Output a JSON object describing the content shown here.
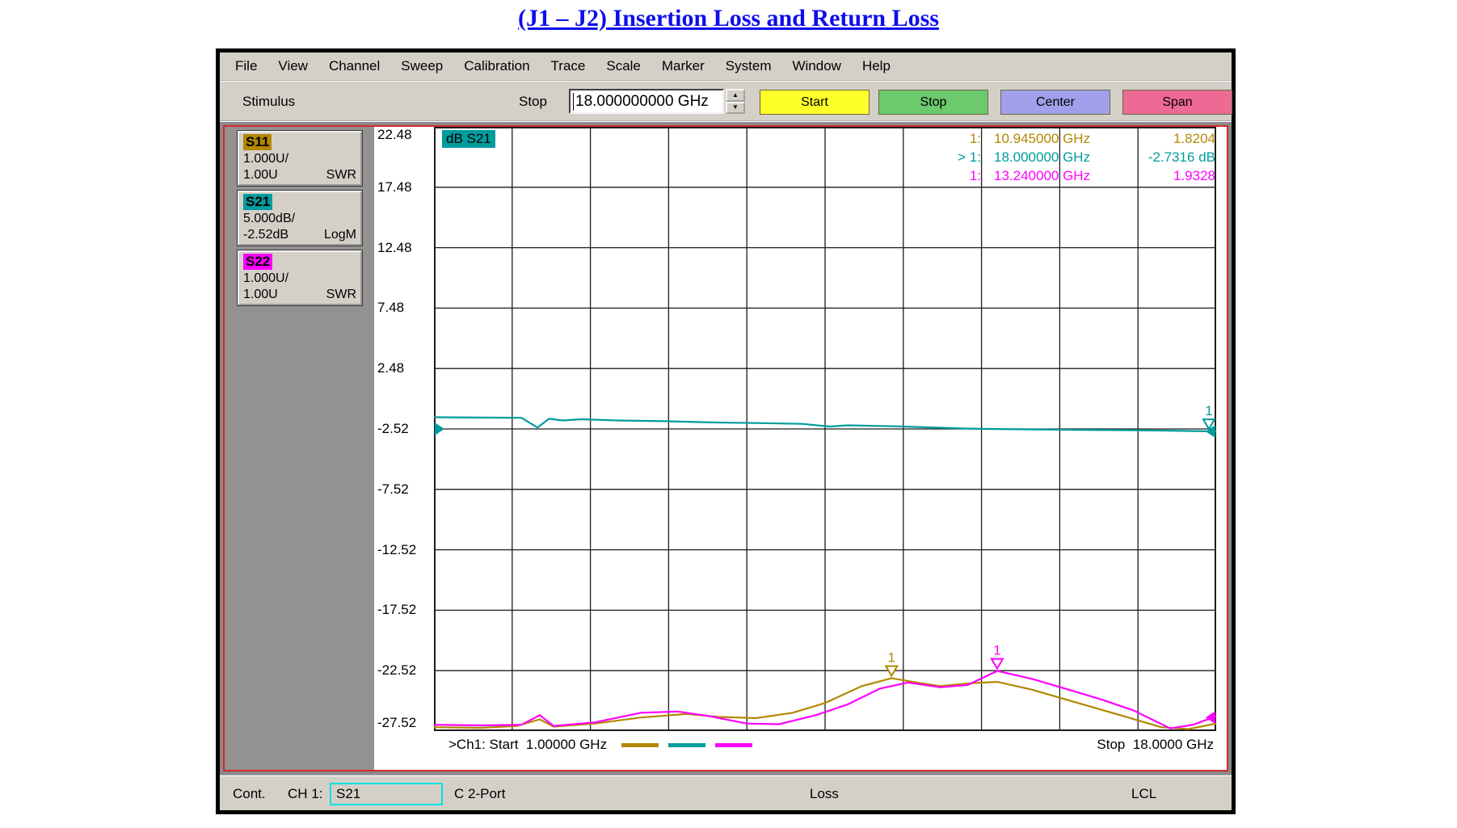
{
  "page_title": "(J1 – J2) Insertion Loss and Return Loss",
  "menu": {
    "items": [
      "File",
      "View",
      "Channel",
      "Sweep",
      "Calibration",
      "Trace",
      "Scale",
      "Marker",
      "System",
      "Window",
      "Help"
    ]
  },
  "toolbar": {
    "stimulus_label": "Stimulus",
    "stop_field_label": "Stop",
    "stop_field_value": "18.000000000 GHz",
    "buttons": [
      {
        "label": "Start",
        "color": "#ffff29"
      },
      {
        "label": "Stop",
        "color": "#6cc96c"
      },
      {
        "label": "Center",
        "color": "#a0a0ec"
      },
      {
        "label": "Span",
        "color": "#ec6a94"
      }
    ]
  },
  "sidebar": {
    "traces": [
      {
        "name": "S11",
        "tag_color": "#b28800",
        "scale": "1.000U/",
        "ref": "1.00U",
        "format": "SWR"
      },
      {
        "name": "S21",
        "tag_color": "#009c9e",
        "scale": "5.000dB/",
        "ref": "-2.52dB",
        "format": "LogM"
      },
      {
        "name": "S22",
        "tag_color": "#ff00ff",
        "scale": "1.000U/",
        "ref": "1.00U",
        "format": "SWR"
      }
    ]
  },
  "chart": {
    "trace_label": "dB S21",
    "readout": [
      {
        "num": "1:",
        "freq": "10.945000 GHz",
        "value": "1.8204",
        "color": "#b28800"
      },
      {
        "num": "> 1:",
        "freq": "18.000000 GHz",
        "value": "-2.7316 dB",
        "color": "#009c9e"
      },
      {
        "num": "1:",
        "freq": "13.240000 GHz",
        "value": "1.9328",
        "color": "#ff00ff"
      }
    ],
    "footer_left": ">Ch1: Start  1.00000 GHz",
    "footer_right": "Stop  18.0000 GHz",
    "legend_colors": [
      "#b28800",
      "#009c9e",
      "#ff00ff"
    ]
  },
  "chart_data": {
    "type": "line",
    "x_unit": "GHz",
    "x_range": [
      1,
      18
    ],
    "ylim": [
      -27.52,
      22.48
    ],
    "y_tick_labels": [
      "22.48",
      "17.48",
      "12.48",
      "7.48",
      "2.48",
      "-2.52",
      "-7.52",
      "-12.52",
      "-17.52",
      "-22.52",
      "-27.52"
    ],
    "grid_divisions": [
      10,
      10
    ],
    "note": "S21 trace in dB (LogM, 5 dB/div, ref -2.52 dB). S11/S22 are SWR traces (1 U/div, ref 1.00 U) given below in axis display units.",
    "series": [
      {
        "name": "S21",
        "color": "#009c9e",
        "points": [
          [
            1,
            -1.55
          ],
          [
            2,
            -1.58
          ],
          [
            2.9,
            -1.6
          ],
          [
            3.25,
            -2.4
          ],
          [
            3.5,
            -1.68
          ],
          [
            3.8,
            -1.82
          ],
          [
            4.2,
            -1.72
          ],
          [
            5,
            -1.82
          ],
          [
            6,
            -1.88
          ],
          [
            7,
            -1.98
          ],
          [
            8,
            -2.03
          ],
          [
            9,
            -2.1
          ],
          [
            9.6,
            -2.32
          ],
          [
            10,
            -2.22
          ],
          [
            11,
            -2.3
          ],
          [
            12,
            -2.42
          ],
          [
            12.5,
            -2.48
          ],
          [
            13,
            -2.52
          ],
          [
            14,
            -2.56
          ],
          [
            15,
            -2.6
          ],
          [
            16,
            -2.62
          ],
          [
            17,
            -2.66
          ],
          [
            18,
            -2.73
          ]
        ]
      },
      {
        "name": "S11",
        "color": "#b28800",
        "points": [
          [
            1,
            -27.2
          ],
          [
            2,
            -27.25
          ],
          [
            2.8,
            -27.1
          ],
          [
            3.3,
            -26.55
          ],
          [
            3.6,
            -27.15
          ],
          [
            4.5,
            -26.9
          ],
          [
            5.5,
            -26.4
          ],
          [
            6.5,
            -26.1
          ],
          [
            7.2,
            -26.35
          ],
          [
            8,
            -26.45
          ],
          [
            8.8,
            -26.0
          ],
          [
            9.5,
            -25.2
          ],
          [
            10.3,
            -23.8
          ],
          [
            10.945,
            -23.15
          ],
          [
            11.5,
            -23.5
          ],
          [
            12,
            -23.8
          ],
          [
            12.7,
            -23.55
          ],
          [
            13.24,
            -23.45
          ],
          [
            14,
            -24.1
          ],
          [
            15,
            -25.2
          ],
          [
            16,
            -26.3
          ],
          [
            16.8,
            -27.2
          ],
          [
            17.4,
            -27.35
          ],
          [
            18,
            -26.9
          ]
        ]
      },
      {
        "name": "S22",
        "color": "#ff00ff",
        "points": [
          [
            1,
            -27.0
          ],
          [
            2,
            -27.05
          ],
          [
            2.9,
            -27.0
          ],
          [
            3.3,
            -26.2
          ],
          [
            3.6,
            -27.1
          ],
          [
            4.5,
            -26.8
          ],
          [
            5.5,
            -26.0
          ],
          [
            6.3,
            -25.9
          ],
          [
            7,
            -26.3
          ],
          [
            7.8,
            -26.9
          ],
          [
            8.5,
            -26.95
          ],
          [
            9.3,
            -26.2
          ],
          [
            10,
            -25.3
          ],
          [
            10.7,
            -24.0
          ],
          [
            11.3,
            -23.5
          ],
          [
            12,
            -23.9
          ],
          [
            12.6,
            -23.7
          ],
          [
            13.24,
            -22.55
          ],
          [
            14,
            -23.2
          ],
          [
            14.8,
            -24.1
          ],
          [
            15.5,
            -24.9
          ],
          [
            16.2,
            -25.8
          ],
          [
            17,
            -27.3
          ],
          [
            17.5,
            -27.0
          ],
          [
            18,
            -26.3
          ]
        ]
      }
    ],
    "markers": [
      {
        "series": "S11",
        "ghz": 10.945,
        "value_display": -23.15,
        "label": "1",
        "color": "#b28800"
      },
      {
        "series": "S22",
        "ghz": 13.24,
        "value_display": -22.55,
        "label": "1",
        "color": "#ff00ff"
      },
      {
        "series": "S21",
        "ghz": 18,
        "value_display": -2.73,
        "label": "1",
        "color": "#009c9e"
      }
    ],
    "edge_indicators": [
      {
        "side": "left",
        "value_display": -2.52,
        "color": "#009c9e"
      },
      {
        "side": "right",
        "value_display": -2.73,
        "color": "#009c9e"
      },
      {
        "side": "right",
        "value_display": -26.4,
        "color": "#ff00ff"
      }
    ]
  },
  "statusbar": {
    "mode": "Cont.",
    "channel": "CH 1:",
    "measurement": "S21",
    "cal_status": "C 2-Port",
    "trace_title": "Loss",
    "control": "LCL"
  }
}
